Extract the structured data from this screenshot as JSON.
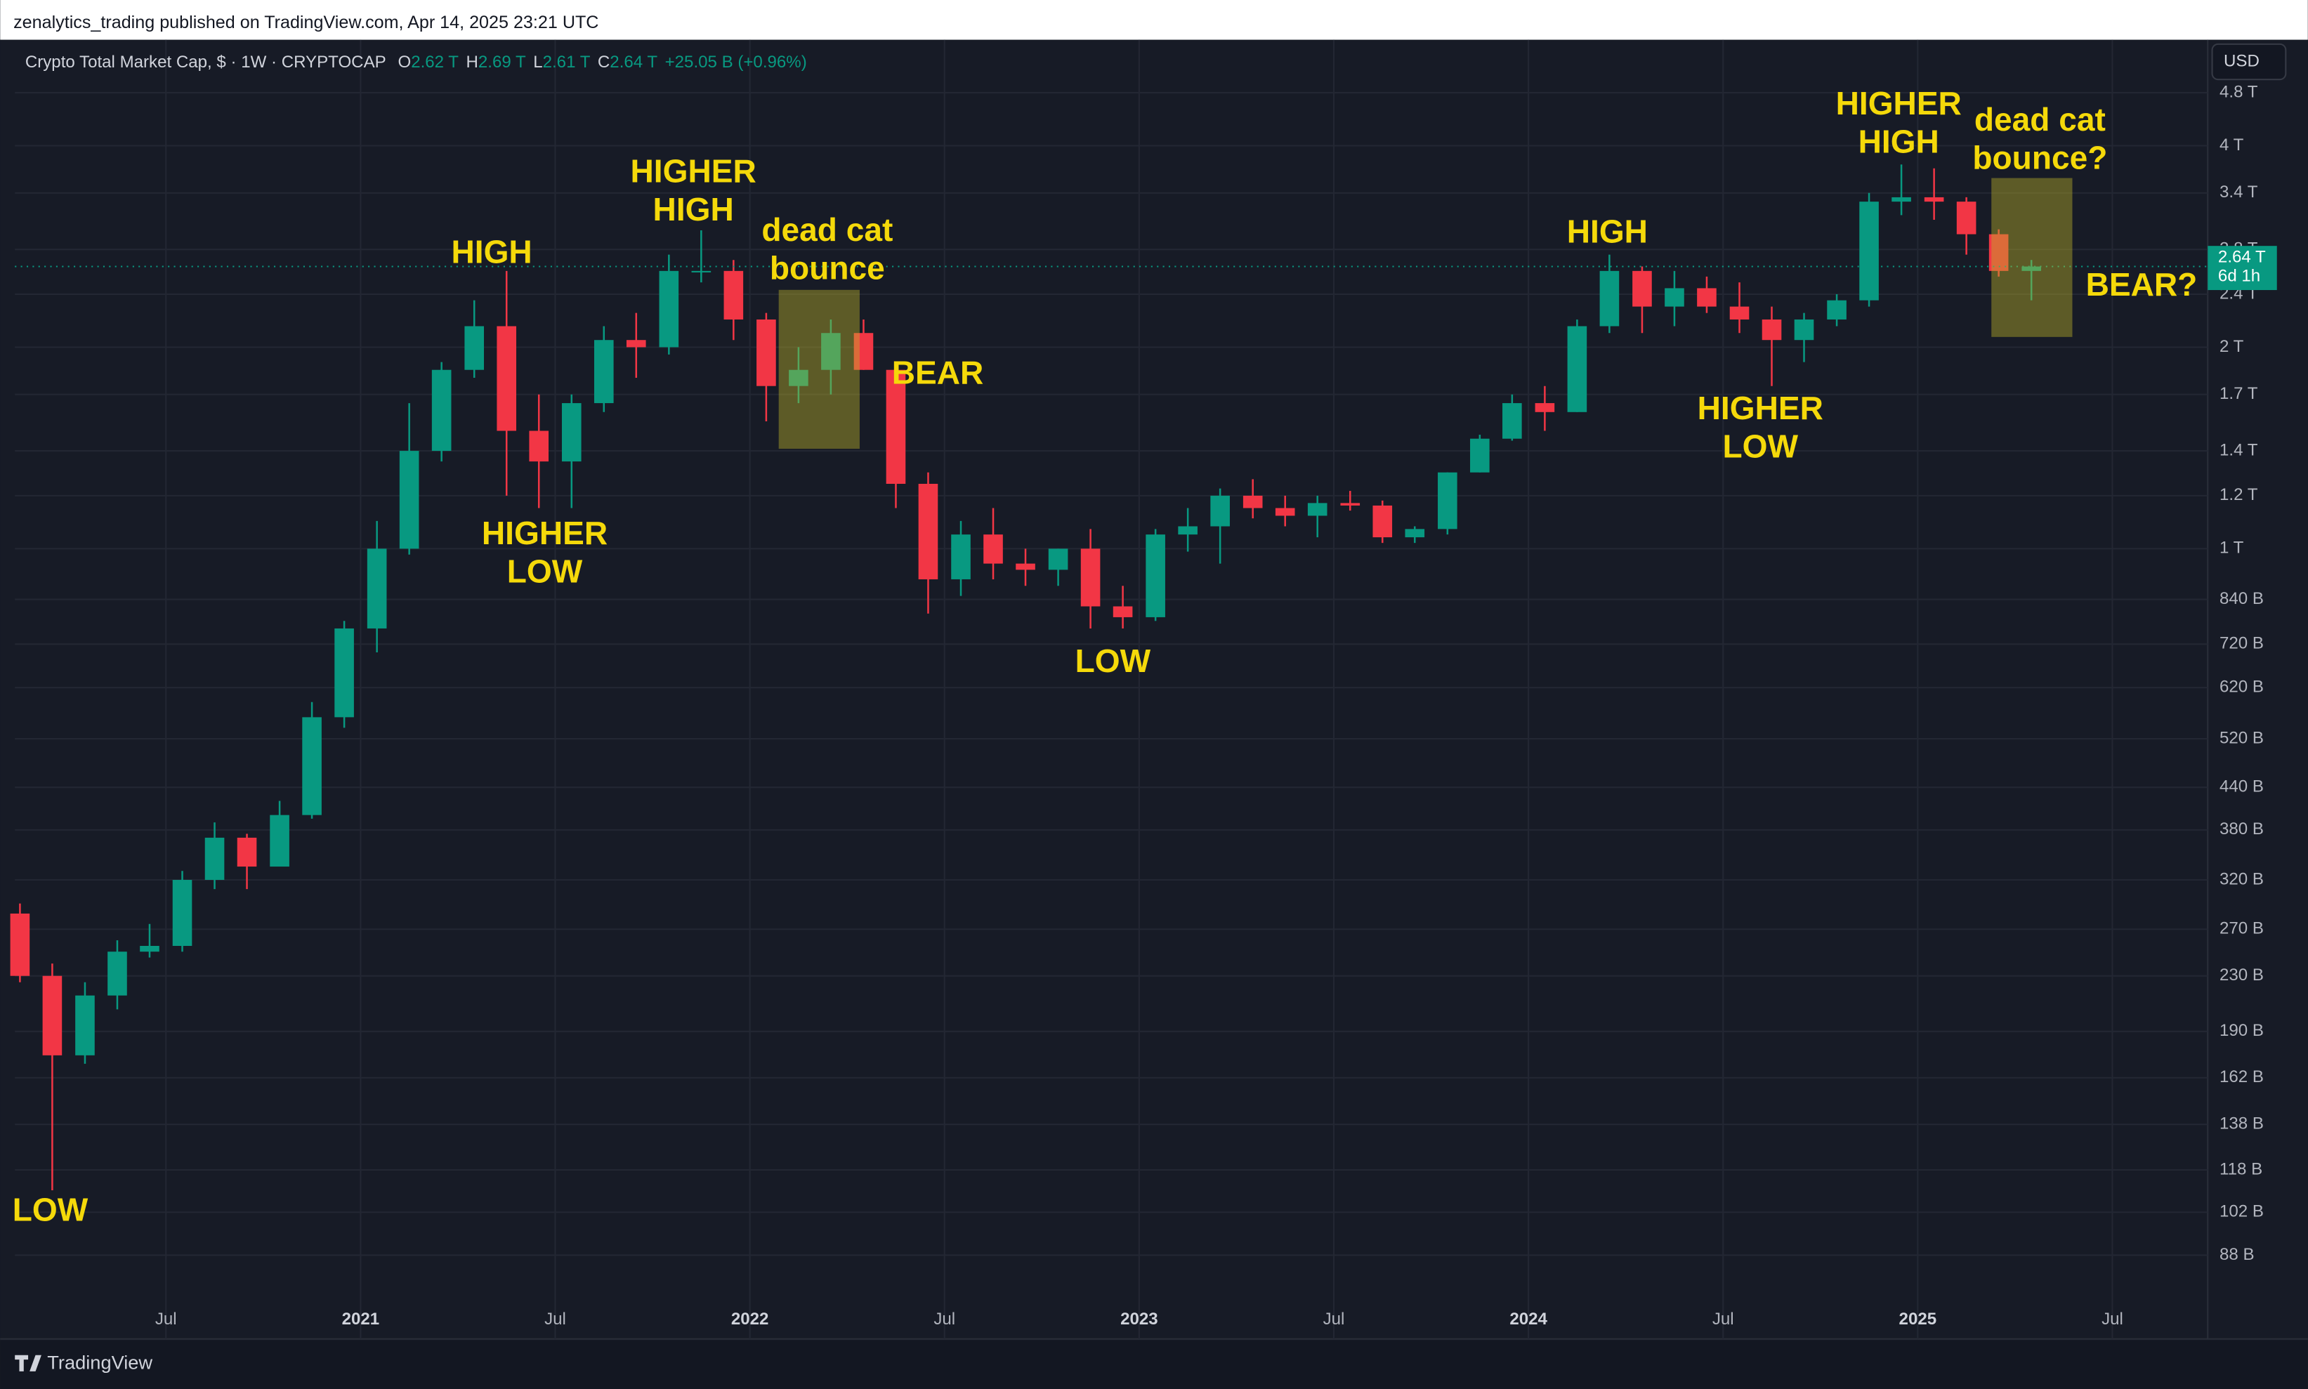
{
  "header": {
    "publisher": "zenalytics_trading published on TradingView.com, Apr 14, 2025 23:21 UTC",
    "footer": "TradingView",
    "currency": "USD"
  },
  "chart_data": {
    "type": "candlestick",
    "title": "Crypto Total Market Cap, $ · 1W · CRYPTOCAP",
    "ohlc_legend": [
      {
        "key": "O",
        "value": "2.62 T"
      },
      {
        "key": "H",
        "value": "2.69 T"
      },
      {
        "key": "L",
        "value": "2.61 T"
      },
      {
        "key": "C",
        "value": "2.64 T"
      }
    ],
    "change": "+25.05 B (+0.96%)",
    "current_price": {
      "value": 2640,
      "label": "2.64 T"
    },
    "countdown": "6d 1h",
    "log_scale": true,
    "grid": true,
    "up_color": "#089981",
    "down_color": "#f23645",
    "x": [
      2020.125,
      2020.208,
      2020.292,
      2020.375,
      2020.458,
      2020.542,
      2020.625,
      2020.708,
      2020.792,
      2020.875,
      2020.958,
      2021.042,
      2021.125,
      2021.208,
      2021.292,
      2021.375,
      2021.458,
      2021.542,
      2021.625,
      2021.708,
      2021.792,
      2021.875,
      2021.958,
      2022.042,
      2022.125,
      2022.208,
      2022.292,
      2022.375,
      2022.458,
      2022.542,
      2022.625,
      2022.708,
      2022.792,
      2022.875,
      2022.958,
      2023.042,
      2023.125,
      2023.208,
      2023.292,
      2023.375,
      2023.458,
      2023.542,
      2023.625,
      2023.708,
      2023.792,
      2023.875,
      2023.958,
      2024.042,
      2024.125,
      2024.208,
      2024.292,
      2024.375,
      2024.458,
      2024.542,
      2024.625,
      2024.708,
      2024.792,
      2024.875,
      2024.958,
      2025.042,
      2025.125,
      2025.208,
      2025.292
    ],
    "open": [
      285,
      230,
      175,
      215,
      250,
      255,
      320,
      370,
      335,
      400,
      560,
      760,
      1000,
      1400,
      1850,
      2150,
      1500,
      1350,
      1650,
      2050,
      2000,
      2600,
      2600,
      2200,
      1750,
      1850,
      2100,
      1850,
      1250,
      900,
      1050,
      950,
      930,
      1000,
      820,
      790,
      1050,
      1080,
      1200,
      1150,
      1120,
      1170,
      1160,
      1040,
      1070,
      1300,
      1460,
      1650,
      1600,
      2150,
      2600,
      2300,
      2450,
      2300,
      2200,
      2050,
      2200,
      2350,
      3300,
      3350,
      3300,
      2950,
      2600
    ],
    "high": [
      295,
      240,
      225,
      260,
      275,
      330,
      390,
      375,
      420,
      590,
      780,
      1100,
      1650,
      1900,
      2350,
      2600,
      1700,
      1700,
      2150,
      2250,
      2750,
      2990,
      2700,
      2250,
      2000,
      2200,
      2200,
      1850,
      1300,
      1100,
      1150,
      1000,
      1000,
      1070,
      880,
      1070,
      1150,
      1230,
      1270,
      1200,
      1200,
      1220,
      1180,
      1080,
      1300,
      1480,
      1700,
      1750,
      2200,
      2750,
      2640,
      2600,
      2550,
      2500,
      2300,
      2250,
      2400,
      3400,
      3750,
      3700,
      3350,
      3000,
      2700
    ],
    "low": [
      225,
      110,
      170,
      205,
      245,
      250,
      310,
      310,
      335,
      395,
      540,
      700,
      980,
      1350,
      1800,
      1200,
      1150,
      1150,
      1600,
      1800,
      1950,
      2500,
      2050,
      1550,
      1650,
      1700,
      1850,
      1150,
      800,
      850,
      900,
      880,
      880,
      760,
      760,
      780,
      990,
      950,
      1110,
      1080,
      1040,
      1140,
      1020,
      1020,
      1050,
      1300,
      1450,
      1500,
      1600,
      2100,
      2100,
      2150,
      2250,
      2100,
      1750,
      1900,
      2150,
      2300,
      3150,
      3100,
      2750,
      2550,
      2350
    ],
    "close": [
      230,
      175,
      215,
      250,
      255,
      320,
      370,
      335,
      400,
      560,
      760,
      1000,
      1400,
      1850,
      2150,
      1500,
      1350,
      1650,
      2050,
      2000,
      2600,
      2600,
      2200,
      1750,
      1850,
      2100,
      1850,
      1250,
      900,
      1050,
      950,
      930,
      1000,
      820,
      790,
      1050,
      1080,
      1200,
      1150,
      1120,
      1170,
      1160,
      1040,
      1070,
      1300,
      1460,
      1650,
      1600,
      2150,
      2600,
      2300,
      2450,
      2300,
      2200,
      2050,
      2200,
      2350,
      3300,
      3350,
      3300,
      2950,
      2600,
      2640
    ],
    "xlim": [
      2020.112,
      2025.745
    ],
    "xticks": [
      {
        "value": 2020.5,
        "label": "Jul"
      },
      {
        "value": 2021,
        "label": "2021"
      },
      {
        "value": 2021.5,
        "label": "Jul"
      },
      {
        "value": 2022,
        "label": "2022"
      },
      {
        "value": 2022.5,
        "label": "Jul"
      },
      {
        "value": 2023,
        "label": "2023"
      },
      {
        "value": 2023.5,
        "label": "Jul"
      },
      {
        "value": 2024,
        "label": "2024"
      },
      {
        "value": 2024.5,
        "label": "Jul"
      },
      {
        "value": 2025,
        "label": "2025"
      },
      {
        "value": 2025.5,
        "label": "Jul"
      }
    ],
    "ylim": [
      76,
      5760
    ],
    "yticks": [
      {
        "value": 88,
        "label": "88 B"
      },
      {
        "value": 102,
        "label": "102 B"
      },
      {
        "value": 118,
        "label": "118 B"
      },
      {
        "value": 138,
        "label": "138 B"
      },
      {
        "value": 162,
        "label": "162 B"
      },
      {
        "value": 190,
        "label": "190 B"
      },
      {
        "value": 230,
        "label": "230 B"
      },
      {
        "value": 270,
        "label": "270 B"
      },
      {
        "value": 320,
        "label": "320 B"
      },
      {
        "value": 380,
        "label": "380 B"
      },
      {
        "value": 440,
        "label": "440 B"
      },
      {
        "value": 520,
        "label": "520 B"
      },
      {
        "value": 620,
        "label": "620 B"
      },
      {
        "value": 720,
        "label": "720 B"
      },
      {
        "value": 840,
        "label": "840 B"
      },
      {
        "value": 1000,
        "label": "1 T"
      },
      {
        "value": 1200,
        "label": "1.2 T"
      },
      {
        "value": 1400,
        "label": "1.4 T"
      },
      {
        "value": 1700,
        "label": "1.7 T"
      },
      {
        "value": 2000,
        "label": "2 T"
      },
      {
        "value": 2400,
        "label": "2.4 T"
      },
      {
        "value": 2800,
        "label": "2.8 T"
      },
      {
        "value": 3400,
        "label": "3.4 T"
      },
      {
        "value": 4000,
        "label": "4 T"
      },
      {
        "value": 4800,
        "label": "4.8 T"
      }
    ],
    "annotations": [
      [
        "LOW"
      ],
      [
        "HIGH"
      ],
      [
        "HIGHER",
        "LOW"
      ],
      [
        "HIGHER",
        "HIGH"
      ],
      [
        "dead cat",
        "bounce"
      ],
      [
        "BEAR"
      ],
      [
        "LOW"
      ],
      [
        "HIGH"
      ],
      [
        "HIGHER",
        "LOW"
      ],
      [
        "HIGHER",
        "HIGH"
      ],
      [
        "dead cat",
        "bounce?"
      ],
      [
        "BEAR?"
      ]
    ]
  }
}
